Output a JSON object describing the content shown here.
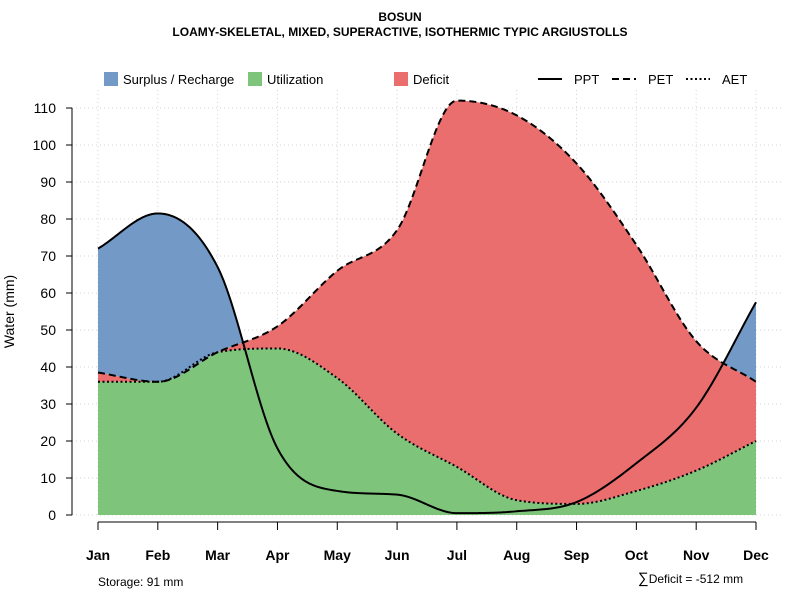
{
  "chart_data": {
    "type": "area",
    "title": "BOSUN",
    "subtitle": "LOAMY-SKELETAL, MIXED, SUPERACTIVE, ISOTHERMIC TYPIC ARGIUSTOLLS",
    "xlabel": "",
    "ylabel": "Water (mm)",
    "ylim": [
      0,
      115
    ],
    "yticks": [
      0,
      10,
      20,
      30,
      40,
      50,
      60,
      70,
      80,
      90,
      100,
      110
    ],
    "grid": true,
    "categories": [
      "Jan",
      "Feb",
      "Mar",
      "Apr",
      "May",
      "Jun",
      "Jul",
      "Aug",
      "Sep",
      "Oct",
      "Nov",
      "Dec"
    ],
    "series": [
      {
        "name": "PPT",
        "style": "solid",
        "values": [
          72,
          81.5,
          67,
          18,
          6.5,
          5.5,
          0.5,
          1,
          3.5,
          14,
          29,
          57.5
        ]
      },
      {
        "name": "PET",
        "style": "dashed",
        "values": [
          38.5,
          36,
          44,
          51,
          66,
          77,
          112,
          108,
          95,
          73,
          47,
          36
        ]
      },
      {
        "name": "AET",
        "style": "dotted",
        "values": [
          36,
          36,
          44,
          45,
          37,
          22,
          13,
          4,
          3,
          6.5,
          12,
          20
        ]
      }
    ],
    "legend": {
      "position": "top",
      "items": [
        {
          "label": "Surplus / Recharge",
          "kind": "fill",
          "color": "#7399c6"
        },
        {
          "label": "Utilization",
          "kind": "fill",
          "color": "#7fc47b"
        },
        {
          "label": "Deficit",
          "kind": "fill",
          "color": "#eb6e6e"
        },
        {
          "label": "PPT",
          "kind": "line",
          "dash": "solid"
        },
        {
          "label": "PET",
          "kind": "line",
          "dash": "dashed"
        },
        {
          "label": "AET",
          "kind": "line",
          "dash": "dotted"
        }
      ]
    },
    "colors": {
      "surplus": "#7399c6",
      "utilization": "#7fc47b",
      "deficit": "#eb6e6e",
      "grid": "#d3d3d3",
      "line": "#000000"
    },
    "annotations": {
      "storage": "Storage: 91 mm",
      "deficit_symbol": "∑",
      "deficit": "Deficit = -512 mm"
    }
  }
}
